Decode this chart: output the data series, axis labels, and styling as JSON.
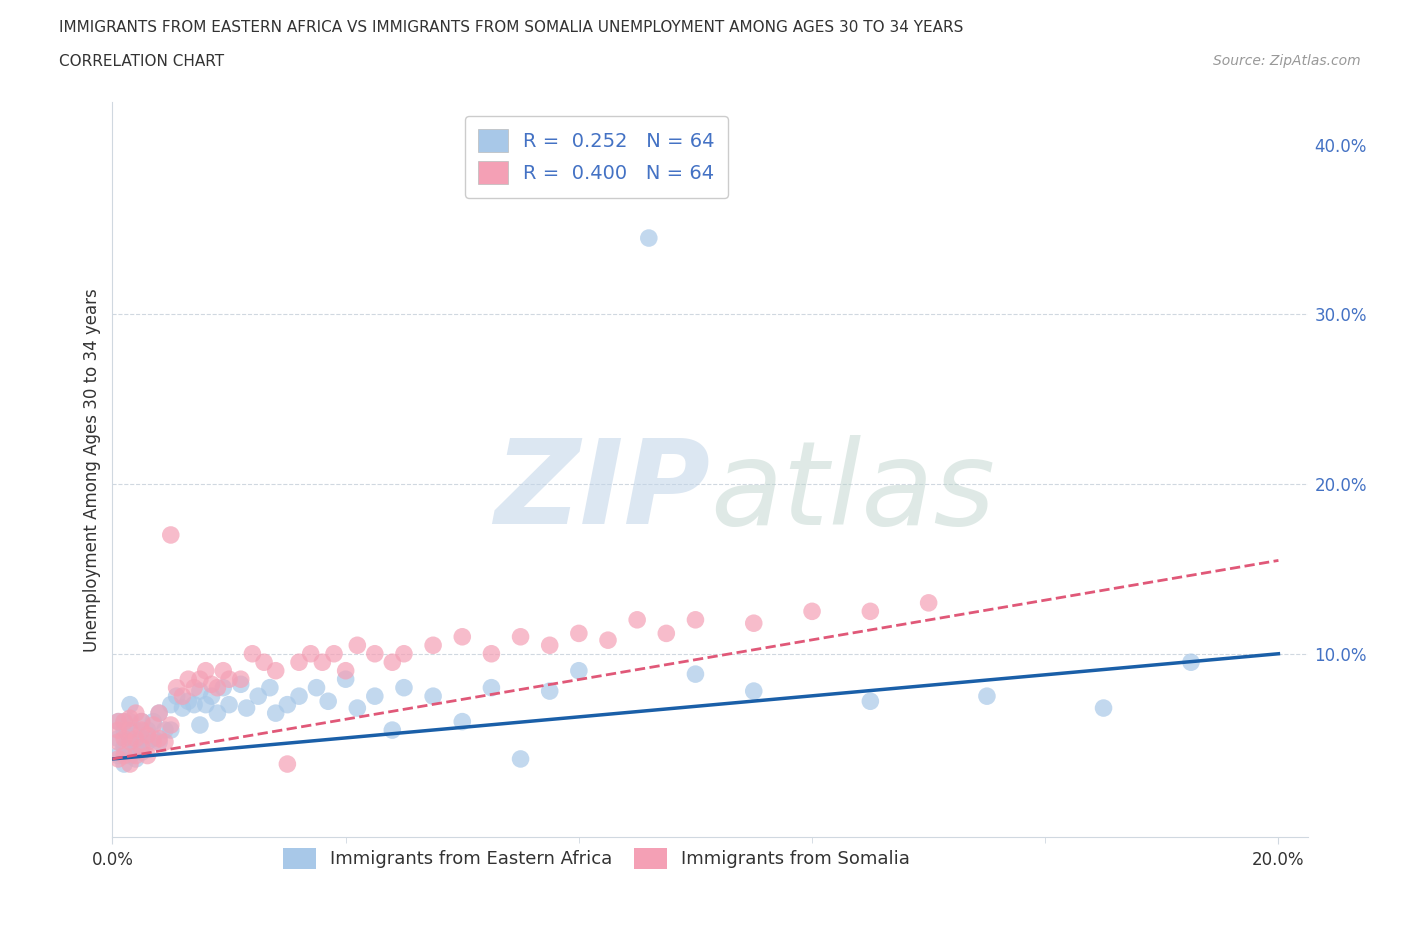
{
  "title_line1": "IMMIGRANTS FROM EASTERN AFRICA VS IMMIGRANTS FROM SOMALIA UNEMPLOYMENT AMONG AGES 30 TO 34 YEARS",
  "title_line2": "CORRELATION CHART",
  "source": "Source: ZipAtlas.com",
  "ylabel": "Unemployment Among Ages 30 to 34 years",
  "xlim": [
    0.0,
    0.205
  ],
  "ylim": [
    -0.008,
    0.425
  ],
  "r_blue": 0.252,
  "n_blue": 64,
  "r_pink": 0.4,
  "n_pink": 64,
  "color_blue": "#a8c8e8",
  "color_pink": "#f4a0b5",
  "line_color_blue": "#1a5fa8",
  "line_color_pink": "#e05878",
  "background_color": "#ffffff",
  "watermark": "ZIPatlas",
  "grid_color": "#d0d8e0",
  "text_color": "#333333",
  "right_tick_color": "#4472c4",
  "title_fontsize": 11,
  "label_fontsize": 12,
  "tick_fontsize": 12,
  "blue_line_x0": 0.0,
  "blue_line_y0": 0.038,
  "blue_line_x1": 0.2,
  "blue_line_y1": 0.1,
  "pink_line_x0": 0.0,
  "pink_line_y0": 0.038,
  "pink_line_x1": 0.2,
  "pink_line_y1": 0.155,
  "blue_scatter_x": [
    0.001,
    0.001,
    0.001,
    0.002,
    0.002,
    0.002,
    0.002,
    0.003,
    0.003,
    0.003,
    0.003,
    0.004,
    0.004,
    0.004,
    0.005,
    0.005,
    0.005,
    0.006,
    0.006,
    0.007,
    0.007,
    0.008,
    0.008,
    0.009,
    0.01,
    0.01,
    0.011,
    0.012,
    0.013,
    0.014,
    0.015,
    0.015,
    0.016,
    0.017,
    0.018,
    0.019,
    0.02,
    0.022,
    0.023,
    0.025,
    0.027,
    0.028,
    0.03,
    0.032,
    0.035,
    0.037,
    0.04,
    0.042,
    0.045,
    0.048,
    0.05,
    0.055,
    0.06,
    0.065,
    0.07,
    0.075,
    0.08,
    0.092,
    0.1,
    0.11,
    0.13,
    0.15,
    0.17,
    0.185
  ],
  "blue_scatter_y": [
    0.05,
    0.04,
    0.06,
    0.055,
    0.035,
    0.06,
    0.045,
    0.05,
    0.04,
    0.06,
    0.07,
    0.045,
    0.055,
    0.038,
    0.05,
    0.06,
    0.042,
    0.055,
    0.048,
    0.06,
    0.05,
    0.065,
    0.048,
    0.055,
    0.07,
    0.055,
    0.075,
    0.068,
    0.072,
    0.07,
    0.078,
    0.058,
    0.07,
    0.075,
    0.065,
    0.08,
    0.07,
    0.082,
    0.068,
    0.075,
    0.08,
    0.065,
    0.07,
    0.075,
    0.08,
    0.072,
    0.085,
    0.068,
    0.075,
    0.055,
    0.08,
    0.075,
    0.06,
    0.08,
    0.038,
    0.078,
    0.09,
    0.345,
    0.088,
    0.078,
    0.072,
    0.075,
    0.068,
    0.095
  ],
  "pink_scatter_x": [
    0.001,
    0.001,
    0.001,
    0.001,
    0.002,
    0.002,
    0.002,
    0.003,
    0.003,
    0.003,
    0.003,
    0.004,
    0.004,
    0.004,
    0.005,
    0.005,
    0.005,
    0.006,
    0.006,
    0.007,
    0.007,
    0.008,
    0.008,
    0.009,
    0.01,
    0.01,
    0.011,
    0.012,
    0.013,
    0.014,
    0.015,
    0.016,
    0.017,
    0.018,
    0.019,
    0.02,
    0.022,
    0.024,
    0.026,
    0.028,
    0.03,
    0.032,
    0.034,
    0.036,
    0.038,
    0.04,
    0.042,
    0.045,
    0.048,
    0.05,
    0.055,
    0.06,
    0.065,
    0.07,
    0.075,
    0.08,
    0.085,
    0.09,
    0.095,
    0.1,
    0.11,
    0.12,
    0.13,
    0.14
  ],
  "pink_scatter_y": [
    0.048,
    0.038,
    0.055,
    0.06,
    0.05,
    0.04,
    0.06,
    0.055,
    0.035,
    0.048,
    0.062,
    0.05,
    0.065,
    0.04,
    0.055,
    0.045,
    0.06,
    0.052,
    0.04,
    0.058,
    0.048,
    0.065,
    0.05,
    0.048,
    0.17,
    0.058,
    0.08,
    0.075,
    0.085,
    0.08,
    0.085,
    0.09,
    0.082,
    0.08,
    0.09,
    0.085,
    0.085,
    0.1,
    0.095,
    0.09,
    0.035,
    0.095,
    0.1,
    0.095,
    0.1,
    0.09,
    0.105,
    0.1,
    0.095,
    0.1,
    0.105,
    0.11,
    0.1,
    0.11,
    0.105,
    0.112,
    0.108,
    0.12,
    0.112,
    0.12,
    0.118,
    0.125,
    0.125,
    0.13
  ]
}
